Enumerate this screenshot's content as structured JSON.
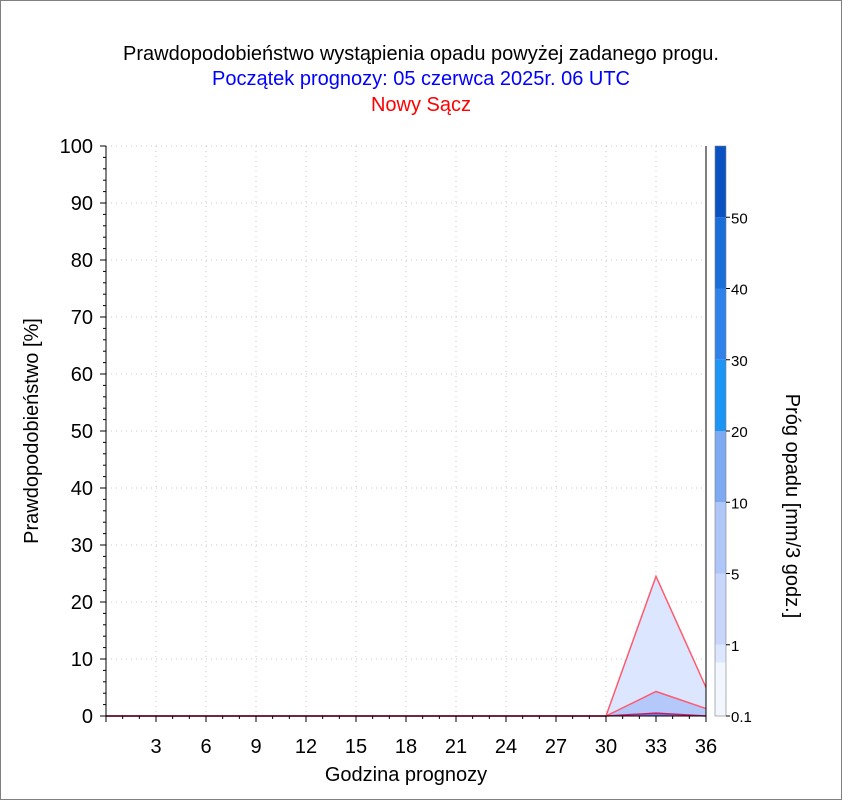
{
  "header": {
    "title": "Prawdopodobieństwo wystąpienia opadu powyżej zadanego progu.",
    "subtitle": "Początek prognozy: 05 czerwca 2025r. 06 UTC",
    "location": "Nowy Sącz"
  },
  "colors": {
    "title": "#000000",
    "subtitle": "#0000ff",
    "location": "#ff0000",
    "series_line": "#ff5a6e",
    "grid": "#c8c8c8"
  },
  "chart_data": {
    "type": "area",
    "xlabel": "Godzina prognozy",
    "ylabel": "Prawdopodobieństwo [%]",
    "colorbar_label": "Próg opadu [mm/3 godz.]",
    "xlim": [
      0,
      36
    ],
    "ylim": [
      0,
      100
    ],
    "x_ticks": [
      3,
      6,
      9,
      12,
      15,
      18,
      21,
      24,
      27,
      30,
      33,
      36
    ],
    "y_ticks": [
      0,
      10,
      20,
      30,
      40,
      50,
      60,
      70,
      80,
      90,
      100
    ],
    "grid": true,
    "x": [
      0,
      3,
      6,
      9,
      12,
      15,
      18,
      21,
      24,
      27,
      30,
      33,
      36
    ],
    "series": [
      {
        "values": [
          0,
          0,
          0,
          0,
          0,
          0,
          0,
          0,
          0,
          0,
          0,
          24.5,
          5
        ],
        "color": "#dce6ff"
      },
      {
        "values": [
          0,
          0,
          0,
          0,
          0,
          0,
          0,
          0,
          0,
          0,
          0,
          4.3,
          1.3
        ],
        "color": "#b4c8fa"
      },
      {
        "values": [
          0,
          0,
          0,
          0,
          0,
          0,
          0,
          0,
          0,
          0,
          0,
          0.5,
          0
        ],
        "color": "#7a78d8"
      }
    ],
    "colorbar": {
      "labels": [
        "0.1",
        "1",
        "5",
        "10",
        "20",
        "30",
        "40",
        "50"
      ],
      "bands": [
        {
          "from": 0,
          "to": 0.75,
          "color": "#f2f6ff"
        },
        {
          "from": 0.75,
          "to": 1,
          "color": "#dce6ff"
        },
        {
          "from": 1,
          "to": 2,
          "color": "#c8d6fc"
        },
        {
          "from": 2,
          "to": 3,
          "color": "#afc6f8"
        },
        {
          "from": 3,
          "to": 4,
          "color": "#7eaaf3"
        },
        {
          "from": 4,
          "to": 5,
          "color": "#1d95f5"
        },
        {
          "from": 5,
          "to": 6,
          "color": "#2f82ea"
        },
        {
          "from": 6,
          "to": 7,
          "color": "#1a6ed8"
        },
        {
          "from": 7,
          "to": 8,
          "color": "#0a52c2"
        }
      ]
    }
  }
}
